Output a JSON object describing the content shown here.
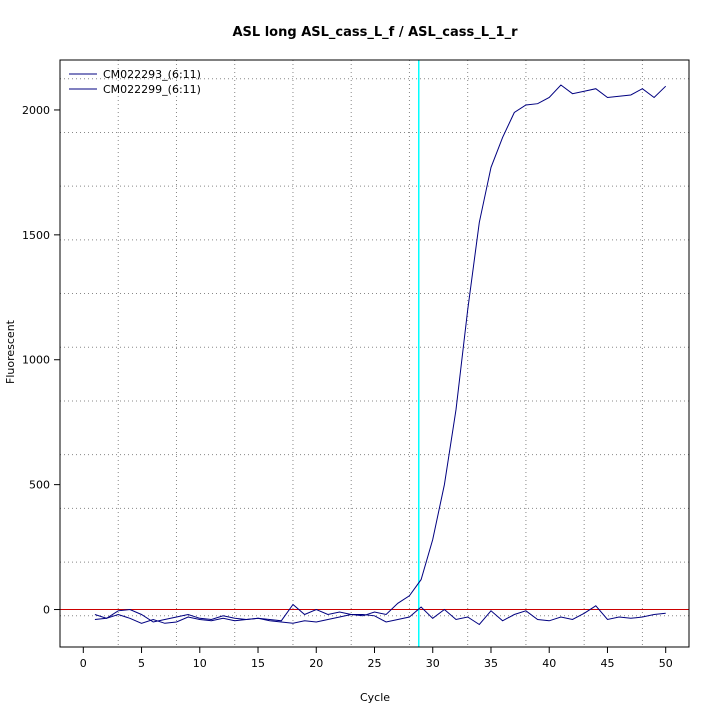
{
  "chart_data": {
    "type": "line",
    "title": "ASL long ASL_cass_L_f / ASL_cass_L_1_r",
    "xlabel": "Cycle",
    "ylabel": "Fluorescent",
    "xlim": [
      -2,
      52
    ],
    "ylim": [
      -150,
      2200
    ],
    "x_ticks": [
      0,
      5,
      10,
      15,
      20,
      25,
      30,
      35,
      40,
      45,
      50
    ],
    "y_ticks": [
      0,
      500,
      1000,
      1500,
      2000
    ],
    "x_grid": [
      3,
      8,
      13,
      18,
      23,
      28,
      33,
      38,
      43,
      48
    ],
    "y_grid": [
      -25,
      190,
      405,
      620,
      835,
      1050,
      1265,
      1480,
      1695,
      1910,
      2125
    ],
    "grid": true,
    "legend_position": "top-left",
    "threshold_cycle": 28.8,
    "threshold_color": "#00ffff",
    "baseline_color": "#cc0000",
    "colors": {
      "series": "#000080"
    },
    "x": [
      1,
      2,
      3,
      4,
      5,
      6,
      7,
      8,
      9,
      10,
      11,
      12,
      13,
      14,
      15,
      16,
      17,
      18,
      19,
      20,
      21,
      22,
      23,
      24,
      25,
      26,
      27,
      28,
      29,
      30,
      31,
      32,
      33,
      34,
      35,
      36,
      37,
      38,
      39,
      40,
      41,
      42,
      43,
      44,
      45,
      46,
      47,
      48,
      49,
      50
    ],
    "series": [
      {
        "name": "CM022293_(6:11)",
        "values": [
          -40,
          -35,
          -20,
          -35,
          -55,
          -40,
          -55,
          -50,
          -30,
          -40,
          -45,
          -35,
          -45,
          -40,
          -35,
          -45,
          -50,
          -55,
          -45,
          -50,
          -40,
          -30,
          -20,
          -25,
          -10,
          -20,
          25,
          55,
          120,
          280,
          500,
          800,
          1200,
          1550,
          1770,
          1890,
          1990,
          2020,
          2025,
          2050,
          2100,
          2065,
          2075,
          2085,
          2050,
          2055,
          2060,
          2085,
          2050,
          2095
        ],
        "color": "#000080"
      },
      {
        "name": "CM022299_(6:11)",
        "values": [
          -20,
          -35,
          -5,
          0,
          -20,
          -50,
          -40,
          -30,
          -20,
          -35,
          -40,
          -25,
          -35,
          -40,
          -35,
          -40,
          -45,
          20,
          -20,
          0,
          -20,
          -10,
          -20,
          -20,
          -25,
          -50,
          -40,
          -30,
          10,
          -35,
          0,
          -40,
          -30,
          -60,
          -5,
          -45,
          -20,
          -5,
          -40,
          -45,
          -30,
          -40,
          -15,
          15,
          -40,
          -30,
          -35,
          -30,
          -20,
          -15
        ],
        "color": "#000080"
      }
    ]
  }
}
